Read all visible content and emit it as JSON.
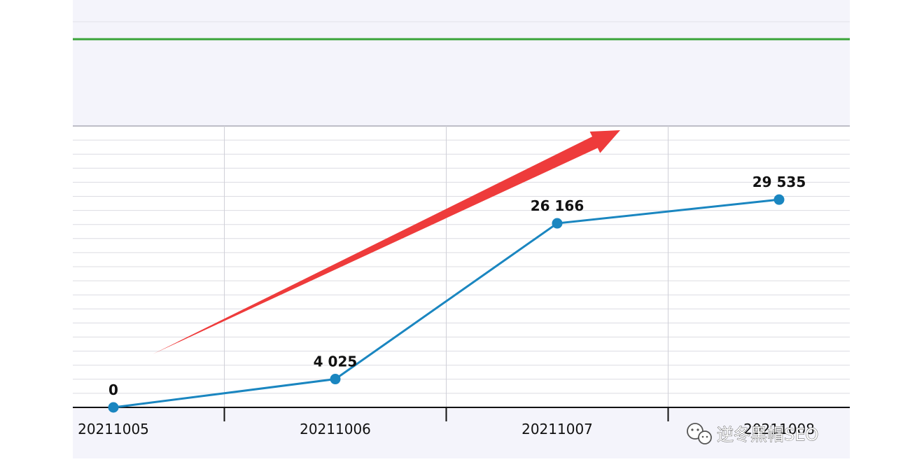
{
  "chart_data": {
    "type": "line",
    "title": "",
    "xlabel": "",
    "ylabel": "",
    "categories": [
      "20211005",
      "20211006",
      "20211007",
      "20211008"
    ],
    "values": [
      0,
      4025,
      26166,
      29535
    ],
    "data_labels": [
      "0",
      "4 025",
      "26 166",
      "29 535"
    ],
    "ylim": [
      0,
      40000
    ],
    "grid": true,
    "legend": "none",
    "line_color": "#1a86c0",
    "marker_color": "#1a86c0",
    "trend_arrow_color": "#ee3b3b",
    "header_line_color": "#3aa43a"
  },
  "watermark": {
    "text": "逆冬黑帽SEO",
    "icon": "wechat-logo-icon"
  }
}
